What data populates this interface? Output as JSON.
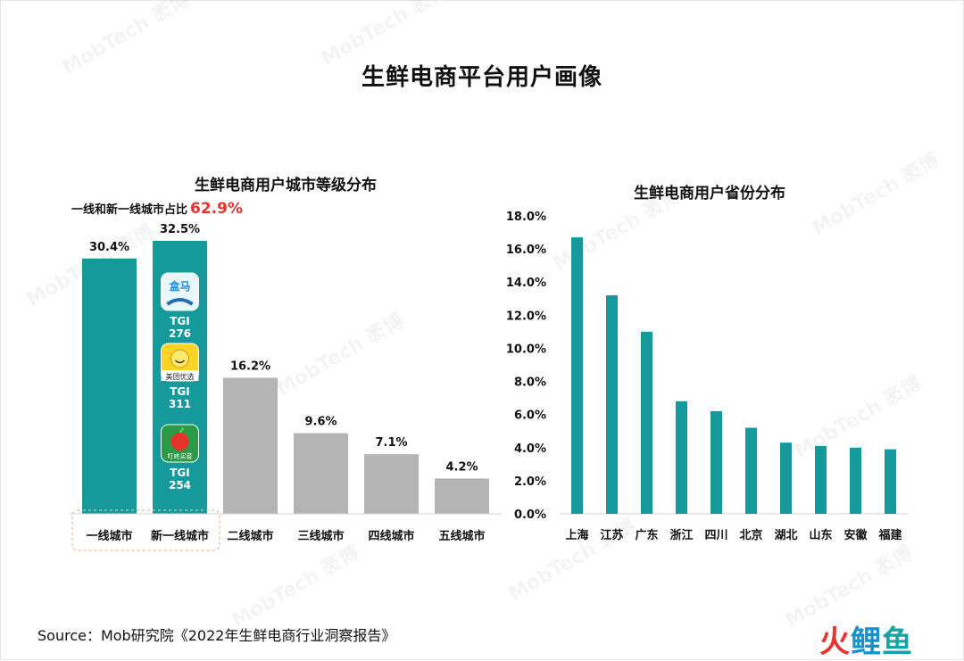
{
  "title": "生鲜电商平台用户画像",
  "source": "Source：Mob研究院《2022年生鲜电商行业洞察报告》",
  "logo": {
    "part1": "火",
    "part2": "鲤",
    "part3": "鱼"
  },
  "watermark": "MobTech 袤博",
  "colors": {
    "teal": "#16999a",
    "gray": "#b4b4b4",
    "red": "#e8322c",
    "dashed_box": "#e7b79a"
  },
  "chart_data": [
    {
      "type": "bar",
      "title": "生鲜电商用户城市等级分布",
      "categories": [
        "一线城市",
        "新一线城市",
        "二线城市",
        "三线城市",
        "四线城市",
        "五线城市"
      ],
      "values": [
        30.4,
        32.5,
        16.2,
        9.6,
        7.1,
        4.2
      ],
      "value_labels": [
        "30.4%",
        "32.5%",
        "16.2%",
        "9.6%",
        "7.1%",
        "4.2%"
      ],
      "highlight_categories": [
        "一线城市",
        "新一线城市"
      ],
      "annotation": {
        "text": "一线和新一线城市占比",
        "value": "62.9%"
      },
      "app_badges": [
        {
          "app": "盒马",
          "tgi_label": "TGI",
          "tgi": "276"
        },
        {
          "app": "美团优选",
          "tgi_label": "TGI",
          "tgi": "311"
        },
        {
          "app": "叮咚买菜",
          "tgi_label": "TGI",
          "tgi": "254"
        }
      ]
    },
    {
      "type": "bar",
      "title": "生鲜电商用户省份分布",
      "categories": [
        "上海",
        "江苏",
        "广东",
        "浙江",
        "四川",
        "北京",
        "湖北",
        "山东",
        "安徽",
        "福建"
      ],
      "values": [
        16.7,
        13.2,
        11.0,
        6.8,
        6.2,
        5.2,
        4.3,
        4.1,
        4.0,
        3.9
      ],
      "ylim": [
        0,
        18
      ],
      "yticks": [
        "0.0%",
        "2.0%",
        "4.0%",
        "6.0%",
        "8.0%",
        "10.0%",
        "12.0%",
        "14.0%",
        "16.0%",
        "18.0%"
      ],
      "grid": false
    }
  ]
}
